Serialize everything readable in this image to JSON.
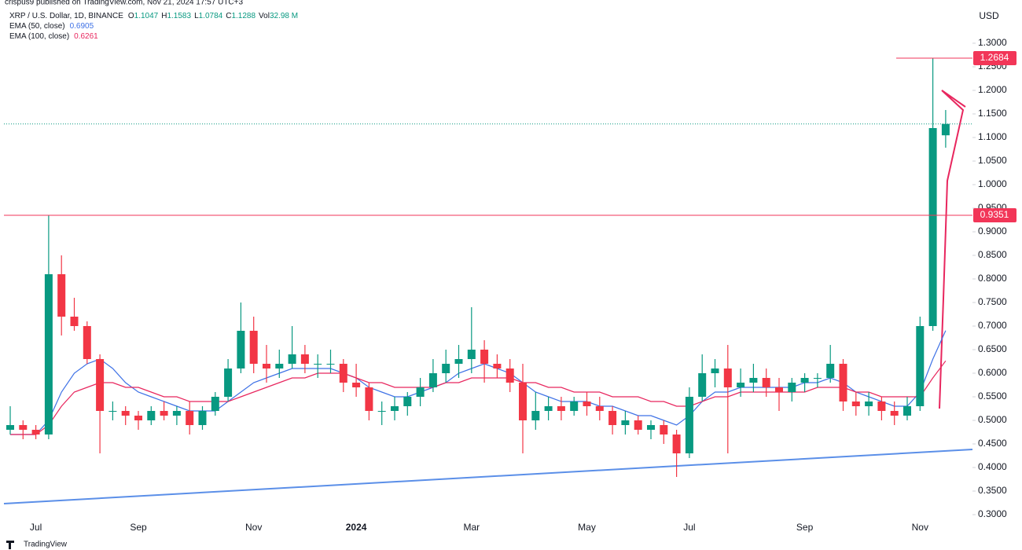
{
  "chart_data": {
    "type": "candlestick",
    "publisher": "crispus9 published on TradingView.com, Nov 21, 2024 17:57 UTC+3",
    "title": "XRP / U.S. Dollar, 1D, BINANCE",
    "ohlc_labels": [
      "O",
      "H",
      "L",
      "C"
    ],
    "volume_name": "Vol",
    "volume": {
      "value": 32980000,
      "label": "32.98 M"
    },
    "currency": "USD",
    "brand": "TradingView",
    "up_color": "#089981",
    "down_color": "#f23645",
    "categories": [
      null,
      null,
      "Jul",
      null,
      null,
      null,
      null,
      null,
      null,
      null,
      "Sep",
      null,
      null,
      null,
      null,
      null,
      null,
      null,
      null,
      "Nov",
      null,
      null,
      null,
      null,
      null,
      null,
      null,
      "2024",
      null,
      null,
      null,
      null,
      null,
      null,
      null,
      null,
      "Mar",
      null,
      null,
      null,
      null,
      null,
      null,
      null,
      null,
      "May",
      null,
      null,
      null,
      null,
      null,
      null,
      null,
      "Jul",
      null,
      null,
      null,
      null,
      null,
      null,
      null,
      null,
      "Sep",
      null,
      null,
      null,
      null,
      null,
      null,
      null,
      null,
      "Nov",
      null,
      null
    ],
    "ohlc": [
      [
        0.48,
        0.53,
        0.47,
        0.49
      ],
      [
        0.49,
        0.5,
        0.46,
        0.48
      ],
      [
        0.48,
        0.49,
        0.46,
        0.47
      ],
      [
        0.47,
        0.9351,
        0.46,
        0.81
      ],
      [
        0.81,
        0.85,
        0.68,
        0.72
      ],
      [
        0.72,
        0.76,
        0.69,
        0.7
      ],
      [
        0.7,
        0.71,
        0.62,
        0.63
      ],
      [
        0.63,
        0.64,
        0.43,
        0.52
      ],
      [
        0.52,
        0.54,
        0.5,
        0.52
      ],
      [
        0.52,
        0.53,
        0.49,
        0.51
      ],
      [
        0.51,
        0.52,
        0.48,
        0.5
      ],
      [
        0.5,
        0.53,
        0.49,
        0.52
      ],
      [
        0.52,
        0.54,
        0.5,
        0.51
      ],
      [
        0.51,
        0.53,
        0.49,
        0.52
      ],
      [
        0.52,
        0.54,
        0.47,
        0.49
      ],
      [
        0.49,
        0.53,
        0.48,
        0.52
      ],
      [
        0.52,
        0.56,
        0.51,
        0.55
      ],
      [
        0.55,
        0.63,
        0.54,
        0.61
      ],
      [
        0.61,
        0.75,
        0.6,
        0.69
      ],
      [
        0.69,
        0.72,
        0.6,
        0.62
      ],
      [
        0.62,
        0.66,
        0.58,
        0.61
      ],
      [
        0.61,
        0.65,
        0.59,
        0.62
      ],
      [
        0.62,
        0.7,
        0.61,
        0.64
      ],
      [
        0.64,
        0.66,
        0.6,
        0.62
      ],
      [
        0.62,
        0.64,
        0.59,
        0.62
      ],
      [
        0.62,
        0.65,
        0.6,
        0.62
      ],
      [
        0.62,
        0.63,
        0.56,
        0.58
      ],
      [
        0.58,
        0.62,
        0.55,
        0.57
      ],
      [
        0.57,
        0.58,
        0.5,
        0.52
      ],
      [
        0.52,
        0.54,
        0.49,
        0.52
      ],
      [
        0.52,
        0.55,
        0.5,
        0.53
      ],
      [
        0.53,
        0.56,
        0.51,
        0.55
      ],
      [
        0.55,
        0.59,
        0.53,
        0.57
      ],
      [
        0.57,
        0.63,
        0.56,
        0.6
      ],
      [
        0.6,
        0.65,
        0.58,
        0.62
      ],
      [
        0.62,
        0.66,
        0.59,
        0.63
      ],
      [
        0.63,
        0.74,
        0.6,
        0.65
      ],
      [
        0.65,
        0.67,
        0.58,
        0.62
      ],
      [
        0.62,
        0.64,
        0.59,
        0.61
      ],
      [
        0.61,
        0.63,
        0.56,
        0.58
      ],
      [
        0.58,
        0.62,
        0.43,
        0.5
      ],
      [
        0.5,
        0.56,
        0.48,
        0.52
      ],
      [
        0.52,
        0.55,
        0.5,
        0.53
      ],
      [
        0.53,
        0.55,
        0.5,
        0.52
      ],
      [
        0.52,
        0.55,
        0.51,
        0.54
      ],
      [
        0.54,
        0.56,
        0.51,
        0.53
      ],
      [
        0.53,
        0.55,
        0.5,
        0.52
      ],
      [
        0.52,
        0.53,
        0.47,
        0.49
      ],
      [
        0.49,
        0.52,
        0.47,
        0.5
      ],
      [
        0.5,
        0.51,
        0.47,
        0.48
      ],
      [
        0.48,
        0.5,
        0.46,
        0.49
      ],
      [
        0.49,
        0.5,
        0.45,
        0.47
      ],
      [
        0.47,
        0.48,
        0.38,
        0.43
      ],
      [
        0.43,
        0.57,
        0.42,
        0.55
      ],
      [
        0.55,
        0.64,
        0.54,
        0.6
      ],
      [
        0.6,
        0.63,
        0.57,
        0.61
      ],
      [
        0.61,
        0.66,
        0.43,
        0.57
      ],
      [
        0.57,
        0.61,
        0.55,
        0.58
      ],
      [
        0.58,
        0.62,
        0.56,
        0.59
      ],
      [
        0.59,
        0.61,
        0.55,
        0.57
      ],
      [
        0.57,
        0.59,
        0.52,
        0.56
      ],
      [
        0.56,
        0.59,
        0.54,
        0.58
      ],
      [
        0.58,
        0.6,
        0.56,
        0.59
      ],
      [
        0.59,
        0.6,
        0.57,
        0.59
      ],
      [
        0.59,
        0.66,
        0.58,
        0.62
      ],
      [
        0.62,
        0.63,
        0.52,
        0.54
      ],
      [
        0.54,
        0.56,
        0.51,
        0.53
      ],
      [
        0.53,
        0.56,
        0.51,
        0.54
      ],
      [
        0.54,
        0.55,
        0.5,
        0.52
      ],
      [
        0.52,
        0.54,
        0.49,
        0.51
      ],
      [
        0.51,
        0.55,
        0.5,
        0.53
      ],
      [
        0.53,
        0.72,
        0.52,
        0.7
      ],
      [
        0.7,
        1.2684,
        0.69,
        1.12
      ],
      [
        1.1047,
        1.1583,
        1.0784,
        1.1288
      ]
    ],
    "series": [
      {
        "name": "EMA (50, close)",
        "color": "#3f72e6",
        "values": [
          0.47,
          0.47,
          0.47,
          0.5,
          0.56,
          0.6,
          0.62,
          0.63,
          0.61,
          0.58,
          0.56,
          0.55,
          0.54,
          0.53,
          0.52,
          0.52,
          0.52,
          0.54,
          0.56,
          0.58,
          0.59,
          0.6,
          0.61,
          0.61,
          0.61,
          0.61,
          0.6,
          0.59,
          0.57,
          0.56,
          0.55,
          0.55,
          0.56,
          0.57,
          0.58,
          0.6,
          0.61,
          0.62,
          0.61,
          0.6,
          0.58,
          0.56,
          0.55,
          0.54,
          0.54,
          0.54,
          0.53,
          0.53,
          0.52,
          0.51,
          0.51,
          0.5,
          0.49,
          0.51,
          0.54,
          0.56,
          0.56,
          0.57,
          0.57,
          0.57,
          0.57,
          0.57,
          0.58,
          0.58,
          0.59,
          0.58,
          0.56,
          0.55,
          0.54,
          0.53,
          0.53,
          0.56,
          0.63,
          0.6905
        ]
      },
      {
        "name": "EMA (100, close)",
        "color": "#e8265e",
        "values": [
          0.47,
          0.47,
          0.47,
          0.49,
          0.53,
          0.56,
          0.57,
          0.58,
          0.58,
          0.57,
          0.57,
          0.56,
          0.55,
          0.55,
          0.54,
          0.54,
          0.54,
          0.54,
          0.55,
          0.56,
          0.57,
          0.58,
          0.59,
          0.59,
          0.6,
          0.6,
          0.6,
          0.59,
          0.58,
          0.58,
          0.57,
          0.57,
          0.57,
          0.57,
          0.58,
          0.58,
          0.59,
          0.59,
          0.59,
          0.59,
          0.58,
          0.58,
          0.57,
          0.57,
          0.56,
          0.56,
          0.56,
          0.55,
          0.55,
          0.55,
          0.54,
          0.54,
          0.53,
          0.53,
          0.54,
          0.55,
          0.55,
          0.56,
          0.56,
          0.56,
          0.56,
          0.56,
          0.56,
          0.57,
          0.57,
          0.57,
          0.56,
          0.56,
          0.55,
          0.55,
          0.55,
          0.55,
          0.59,
          0.6261
        ]
      }
    ],
    "levels": [
      {
        "value": 1.2684,
        "color": "#f23658"
      },
      {
        "value": 0.9351,
        "color": "#f23658"
      }
    ],
    "ylim": [
      0.3,
      1.3
    ],
    "yticks": [
      {
        "value": 0.3,
        "label": "0.3000"
      },
      {
        "value": 0.35,
        "label": "0.3500"
      },
      {
        "value": 0.4,
        "label": "0.4000"
      },
      {
        "value": 0.45,
        "label": "0.4500"
      },
      {
        "value": 0.5,
        "label": "0.5000"
      },
      {
        "value": 0.55,
        "label": "0.5500"
      },
      {
        "value": 0.6,
        "label": "0.6000"
      },
      {
        "value": 0.65,
        "label": "0.6500"
      },
      {
        "value": 0.7,
        "label": "0.7000"
      },
      {
        "value": 0.75,
        "label": "0.7500"
      },
      {
        "value": 0.8,
        "label": "0.8000"
      },
      {
        "value": 0.85,
        "label": "0.8500"
      },
      {
        "value": 0.9,
        "label": "0.9000"
      },
      {
        "value": 0.95,
        "label": "0.9500"
      },
      {
        "value": 1.0,
        "label": "1.0000"
      },
      {
        "value": 1.05,
        "label": "1.0500"
      },
      {
        "value": 1.1,
        "label": "1.1000"
      },
      {
        "value": 1.15,
        "label": "1.1500"
      },
      {
        "value": 1.2,
        "label": "1.2000"
      },
      {
        "value": 1.25,
        "label": "1.2500"
      },
      {
        "value": 1.3,
        "label": "1.3000"
      }
    ]
  }
}
